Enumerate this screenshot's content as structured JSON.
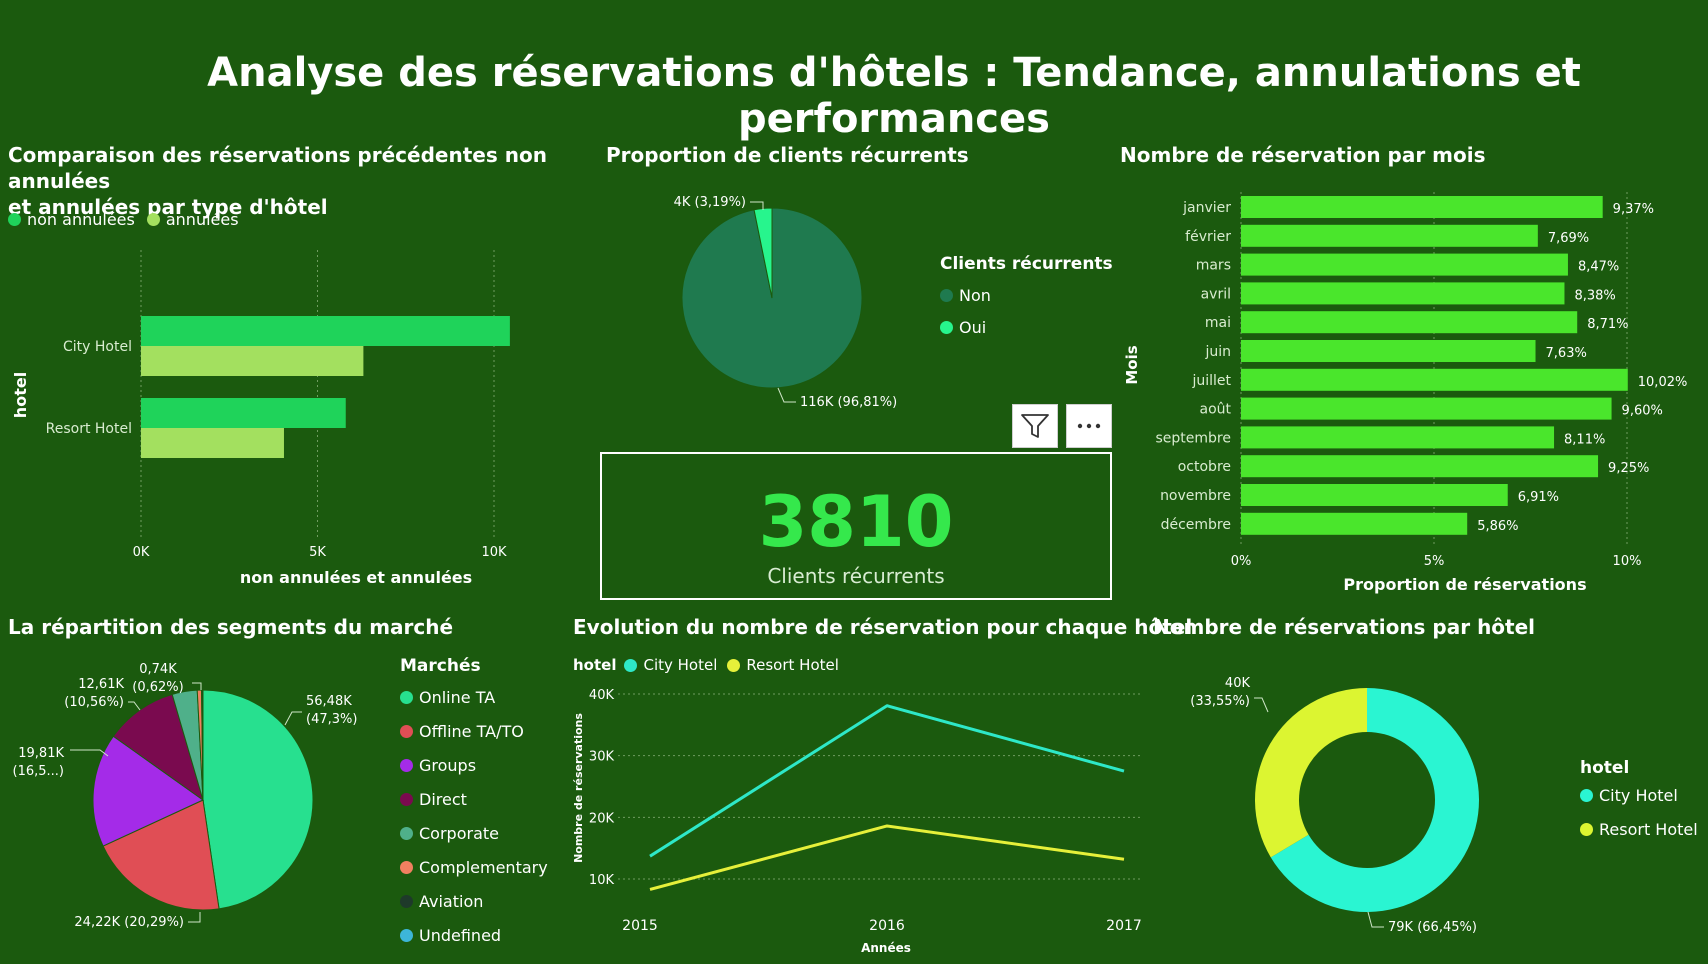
{
  "page": {
    "title": "Analyse des réservations d'hôtels : Tendance, annulations et performances"
  },
  "colors": {
    "background": "#1b5a0e"
  },
  "kpi": {
    "value": "3810",
    "label": "Clients récurrents"
  },
  "toolbar": {
    "filter_icon": "filter-icon",
    "more_icon": "more-options-icon"
  },
  "chart_data": [
    {
      "id": "cancellations",
      "type": "bar",
      "orientation": "horizontal",
      "title": "Comparaison des réservations précédentes non annulées et annulées par type d'hôtel",
      "title_lines": [
        "Comparaison des réservations précédentes non annulées",
        "et annulées par type d'hôtel"
      ],
      "categories": [
        "City Hotel",
        "Resort Hotel"
      ],
      "series": [
        {
          "name": "non annulées",
          "values": [
            10450,
            5800
          ],
          "color": "#1fd35a"
        },
        {
          "name": "annulées",
          "values": [
            6300,
            4050
          ],
          "color": "#a3e05f"
        }
      ],
      "xlabel": "non annulées et annulées",
      "ylabel": "hotel",
      "xlim": [
        0,
        10000
      ],
      "xticks": [
        {
          "value": 0,
          "label": "0K"
        },
        {
          "value": 5000,
          "label": "5K"
        },
        {
          "value": 10000,
          "label": "10K"
        }
      ],
      "legend_position": "top-left",
      "grid": true
    },
    {
      "id": "recurring",
      "type": "pie",
      "title": "Proportion de clients récurrents",
      "legend_title": "Clients récurrents",
      "slices": [
        {
          "name": "Non",
          "value": 96.81,
          "label": "116K (96,81%)",
          "color": "#1f7a4f"
        },
        {
          "name": "Oui",
          "value": 3.19,
          "label": "4K (3,19%)",
          "color": "#27f58d"
        }
      ],
      "legend_position": "right"
    },
    {
      "id": "monthly",
      "type": "bar",
      "orientation": "horizontal",
      "title": "Nombre de réservation par mois",
      "categories": [
        "janvier",
        "février",
        "mars",
        "avril",
        "mai",
        "juin",
        "juillet",
        "août",
        "septembre",
        "octobre",
        "novembre",
        "décembre"
      ],
      "values": [
        9.37,
        7.69,
        8.47,
        8.38,
        8.71,
        7.63,
        10.02,
        9.6,
        8.11,
        9.25,
        6.91,
        5.86
      ],
      "data_labels": [
        "9,37%",
        "7,69%",
        "8,47%",
        "8,38%",
        "8,71%",
        "7,63%",
        "10,02%",
        "9,60%",
        "8,11%",
        "9,25%",
        "6,91%",
        "5,86%"
      ],
      "color": "#4ae62c",
      "xlabel": "Proportion de réservations",
      "ylabel": "Mois",
      "xlim": [
        0,
        10
      ],
      "xticks": [
        {
          "value": 0,
          "label": "0%"
        },
        {
          "value": 5,
          "label": "5%"
        },
        {
          "value": 10,
          "label": "10%"
        }
      ],
      "grid": true
    },
    {
      "id": "segments",
      "type": "pie",
      "title": "La répartition des segments du marché",
      "legend_title": "Marchés",
      "slices": [
        {
          "name": "Online TA",
          "value": 47.3,
          "label": [
            "56,48K",
            "(47,3%)"
          ],
          "color": "#27e08f"
        },
        {
          "name": "Offline TA/TO",
          "value": 20.29,
          "label": [
            "24,22K (20,29%)"
          ],
          "color": "#e04e55"
        },
        {
          "name": "Groups",
          "value": 16.59,
          "label": [
            "19,81K",
            "(16,5...)"
          ],
          "color": "#a42be8"
        },
        {
          "name": "Direct",
          "value": 10.56,
          "label": [
            "12,61K",
            "(10,56%)"
          ],
          "color": "#7a0a4f"
        },
        {
          "name": "Corporate",
          "value": 3.65,
          "label": [],
          "color": "#4fb08a"
        },
        {
          "name": "Complementary",
          "value": 0.62,
          "label": [
            "0,74K",
            "(0,62%)"
          ],
          "color": "#f08060"
        },
        {
          "name": "Aviation",
          "value": 0.2,
          "label": [],
          "color": "#1e3a2a"
        },
        {
          "name": "Undefined",
          "value": 0.01,
          "label": [],
          "color": "#3db6d8"
        }
      ],
      "legend_position": "right"
    },
    {
      "id": "evolution",
      "type": "line",
      "title": "Evolution du nombre de réservation pour chaque hôtel",
      "legend_title": "hotel",
      "x": [
        "2015",
        "2016",
        "2017"
      ],
      "series": [
        {
          "name": "City Hotel",
          "values": [
            13700,
            38100,
            27500
          ],
          "color": "#2ee8c8"
        },
        {
          "name": "Resort Hotel",
          "values": [
            8300,
            18600,
            13200
          ],
          "color": "#e6f03a"
        }
      ],
      "xlabel": "Années",
      "ylabel": "Nombre de réservations",
      "ylim": [
        7000,
        42000
      ],
      "yticks": [
        {
          "value": 10000,
          "label": "10K"
        },
        {
          "value": 20000,
          "label": "20K"
        },
        {
          "value": 30000,
          "label": "30K"
        },
        {
          "value": 40000,
          "label": "40K"
        }
      ],
      "legend_position": "top-left",
      "grid": true
    },
    {
      "id": "by-hotel",
      "type": "pie",
      "donut": true,
      "title": "Nombre de réservations par hôtel",
      "legend_title": "hotel",
      "slices": [
        {
          "name": "City Hotel",
          "value": 66.45,
          "label": [
            "79K (66,45%)"
          ],
          "color": "#2af5d2"
        },
        {
          "name": "Resort Hotel",
          "value": 33.55,
          "label": [
            "40K",
            "(33,55%)"
          ],
          "color": "#dcf531"
        }
      ],
      "legend_position": "right"
    }
  ]
}
